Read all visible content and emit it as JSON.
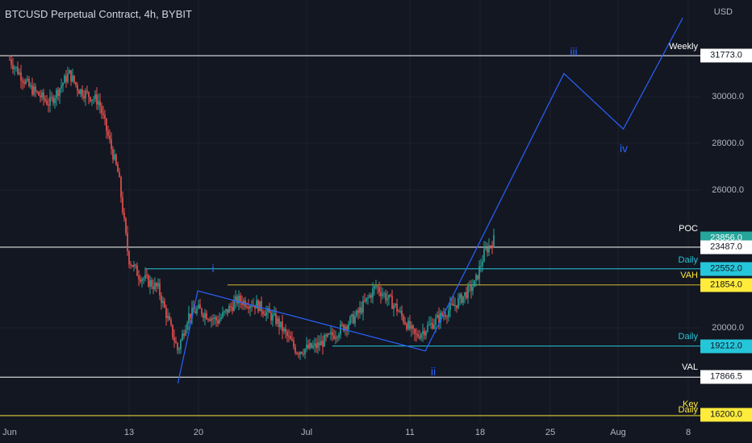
{
  "header": {
    "title": "BTCUSD Perpetual Contract, 4h, BYBIT"
  },
  "price_axis": {
    "currency": "USD",
    "ticks": [
      "30000.0",
      "28000.0",
      "26000.0",
      "20000.0"
    ]
  },
  "levels": [
    {
      "name": "weekly",
      "label": "Weekly",
      "tag": "31773.0",
      "price": 31773,
      "line": "#ffffff",
      "tag_bg": "#ffffff",
      "tag_fg": "#131722",
      "label_color": "#ffffff"
    },
    {
      "name": "poc",
      "label": "POC",
      "tag": "23856.0",
      "price": 23856,
      "line": "",
      "tag_bg": "#26a69a",
      "tag_fg": "#ffffff",
      "label_color": "#ffffff"
    },
    {
      "name": "current",
      "label": "",
      "tag": "23487.0",
      "price": 23487,
      "line": "#ffffff",
      "tag_bg": "#ffffff",
      "tag_fg": "#131722",
      "label_color": "#ffffff"
    },
    {
      "name": "daily-upper",
      "label": "Daily",
      "tag": "22552.0",
      "price": 22552,
      "line": "#26c6da",
      "tag_bg": "#26c6da",
      "tag_fg": "#131722",
      "label_color": "#26c6da"
    },
    {
      "name": "vah",
      "label": "VAH",
      "tag": "21854.0",
      "price": 21854,
      "line": "#d4b72c",
      "tag_bg": "#ffeb3b",
      "tag_fg": "#131722",
      "label_color": "#ffeb3b"
    },
    {
      "name": "daily-lower",
      "label": "Daily",
      "tag": "19212.0",
      "price": 19212,
      "line": "#26c6da",
      "tag_bg": "#26c6da",
      "tag_fg": "#131722",
      "label_color": "#26c6da"
    },
    {
      "name": "val",
      "label": "VAL",
      "tag": "17866.5",
      "price": 17866.5,
      "line": "#ffffff",
      "tag_bg": "#ffffff",
      "tag_fg": "#131722",
      "label_color": "#ffffff"
    },
    {
      "name": "key-daily",
      "label": "Key",
      "label2": "Daily",
      "tag": "16200.0",
      "price": 16200,
      "line": "#ffeb3b",
      "tag_bg": "#ffeb3b",
      "tag_fg": "#131722",
      "label_color": "#ffeb3b"
    }
  ],
  "time_axis": [
    "Jun",
    "13",
    "20",
    "Jul",
    "11",
    "18",
    "25",
    "Aug",
    "8"
  ],
  "waves": [
    "i",
    "ii",
    "iii",
    "iv"
  ],
  "colors": {
    "up": "#26a69a",
    "down": "#ef5350",
    "wave": "#2962ff",
    "grid": "#1e222d",
    "bg": "#131722"
  },
  "chart_data": {
    "type": "candlestick",
    "symbol": "BTCUSD Perpetual Contract",
    "interval": "4h",
    "exchange": "BYBIT",
    "close_path": [
      [
        "Jun 1",
        31600
      ],
      [
        "Jun 3",
        30400
      ],
      [
        "Jun 5",
        29700
      ],
      [
        "Jun 7",
        31000
      ],
      [
        "Jun 8",
        30300
      ],
      [
        "Jun 10",
        29800
      ],
      [
        "Jun 11",
        28200
      ],
      [
        "Jun 12",
        26600
      ],
      [
        "Jun 13",
        23000
      ],
      [
        "Jun 14",
        22300
      ],
      [
        "Jun 16",
        21700
      ],
      [
        "Jun 18",
        19000
      ],
      [
        "Jun 19",
        20500
      ],
      [
        "Jun 20",
        20800
      ],
      [
        "Jun 22",
        20300
      ],
      [
        "Jun 24",
        21200
      ],
      [
        "Jun 26",
        21000
      ],
      [
        "Jun 28",
        20300
      ],
      [
        "Jun 30",
        19000
      ],
      [
        "Jul 2",
        19200
      ],
      [
        "Jul 4",
        19800
      ],
      [
        "Jul 6",
        20500
      ],
      [
        "Jul 8",
        21800
      ],
      [
        "Jul 10",
        20900
      ],
      [
        "Jul 12",
        19600
      ],
      [
        "Jul 14",
        20300
      ],
      [
        "Jul 16",
        21000
      ],
      [
        "Jul 18",
        21900
      ],
      [
        "Jul 19",
        23300
      ],
      [
        "Jul 20",
        23856
      ]
    ],
    "wave_projection": [
      [
        "Jun 18",
        17600
      ],
      [
        "Jun 20",
        21600
      ],
      [
        "Jul 13",
        19000
      ],
      [
        "Jul 27",
        31000
      ],
      [
        "Aug 2",
        28600
      ],
      [
        "Aug 8",
        33400
      ]
    ],
    "y_range": [
      15800,
      34600
    ]
  }
}
